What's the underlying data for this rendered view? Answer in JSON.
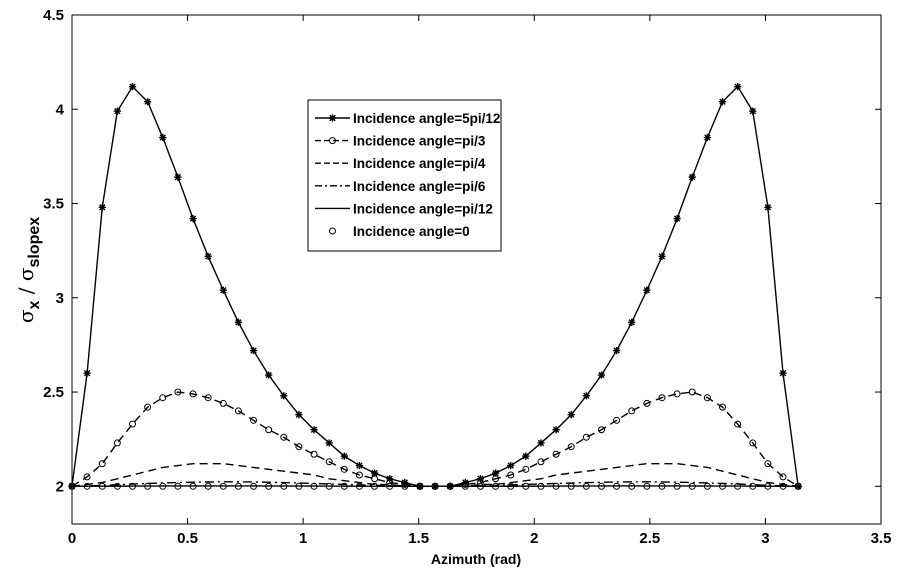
{
  "chart_data": {
    "type": "line",
    "title": "",
    "xlabel": "Azimuth (rad)",
    "ylabel": {
      "num_symbol": "σ",
      "num_sub": "x",
      "separator": " / ",
      "den_symbol": "σ",
      "den_sub": "slopex"
    },
    "xlim": [
      0,
      3.5
    ],
    "ylim": [
      1.8,
      4.5
    ],
    "xticks": [
      "0",
      "0.5",
      "1",
      "1.5",
      "2",
      "2.5",
      "3",
      "3.5"
    ],
    "yticks": [
      "2",
      "2.5",
      "3",
      "3.5",
      "4",
      "4.5"
    ],
    "grid": false,
    "legend_position": "top-center",
    "series": [
      {
        "name": "Incidence angle=5pi/12",
        "style": "solid-star",
        "x": [
          0,
          0.0654,
          0.1309,
          0.1963,
          0.2618,
          0.3272,
          0.3927,
          0.4581,
          0.5236,
          0.589,
          0.6545,
          0.7199,
          0.7854,
          0.8508,
          0.9163,
          0.9817,
          1.0472,
          1.1126,
          1.1781,
          1.2435,
          1.309,
          1.3744,
          1.4399,
          1.5053,
          1.5708,
          1.6362,
          1.7017,
          1.7671,
          1.8326,
          1.898,
          1.9635,
          2.0289,
          2.0944,
          2.1598,
          2.2253,
          2.2907,
          2.3562,
          2.4216,
          2.4871,
          2.5525,
          2.618,
          2.6834,
          2.7489,
          2.8143,
          2.8798,
          2.9452,
          3.0107,
          3.0761,
          3.1416
        ],
        "y": [
          2.0,
          2.6,
          3.48,
          3.99,
          4.12,
          4.04,
          3.85,
          3.64,
          3.42,
          3.22,
          3.04,
          2.87,
          2.72,
          2.59,
          2.48,
          2.38,
          2.3,
          2.23,
          2.16,
          2.11,
          2.07,
          2.04,
          2.02,
          2.0,
          2.0,
          2.0,
          2.02,
          2.04,
          2.07,
          2.11,
          2.16,
          2.23,
          2.3,
          2.38,
          2.48,
          2.59,
          2.72,
          2.87,
          3.04,
          3.22,
          3.42,
          3.64,
          3.85,
          4.04,
          4.12,
          3.99,
          3.48,
          2.6,
          2.0
        ]
      },
      {
        "name": "Incidence angle=pi/3",
        "style": "dashed-circle",
        "x": [
          0,
          0.0654,
          0.1309,
          0.1963,
          0.2618,
          0.3272,
          0.3927,
          0.4581,
          0.5236,
          0.589,
          0.6545,
          0.7199,
          0.7854,
          0.8508,
          0.9163,
          0.9817,
          1.0472,
          1.1126,
          1.1781,
          1.2435,
          1.309,
          1.3744,
          1.4399,
          1.5053,
          1.5708,
          1.6362,
          1.7017,
          1.7671,
          1.8326,
          1.898,
          1.9635,
          2.0289,
          2.0944,
          2.1598,
          2.2253,
          2.2907,
          2.3562,
          2.4216,
          2.4871,
          2.5525,
          2.618,
          2.6834,
          2.7489,
          2.8143,
          2.8798,
          2.9452,
          3.0107,
          3.0761,
          3.1416
        ],
        "y": [
          2.0,
          2.05,
          2.12,
          2.23,
          2.33,
          2.42,
          2.47,
          2.5,
          2.49,
          2.47,
          2.44,
          2.4,
          2.35,
          2.3,
          2.26,
          2.21,
          2.17,
          2.13,
          2.09,
          2.06,
          2.04,
          2.02,
          2.01,
          2.0,
          2.0,
          2.0,
          2.01,
          2.02,
          2.04,
          2.06,
          2.09,
          2.13,
          2.17,
          2.21,
          2.26,
          2.3,
          2.35,
          2.4,
          2.44,
          2.47,
          2.49,
          2.5,
          2.47,
          2.42,
          2.33,
          2.23,
          2.12,
          2.05,
          2.0
        ]
      },
      {
        "name": "Incidence angle=pi/4",
        "style": "dashed",
        "x": [
          0,
          0.0654,
          0.1309,
          0.1963,
          0.2618,
          0.3272,
          0.3927,
          0.4581,
          0.5236,
          0.589,
          0.6545,
          0.7199,
          0.7854,
          0.8508,
          0.9163,
          0.9817,
          1.0472,
          1.1126,
          1.1781,
          1.2435,
          1.309,
          1.3744,
          1.4399,
          1.5053,
          1.5708,
          1.6362,
          1.7017,
          1.7671,
          1.8326,
          1.898,
          1.9635,
          2.0289,
          2.0944,
          2.1598,
          2.2253,
          2.2907,
          2.3562,
          2.4216,
          2.4871,
          2.5525,
          2.618,
          2.6834,
          2.7489,
          2.8143,
          2.8798,
          2.9452,
          3.0107,
          3.0761,
          3.1416
        ],
        "y": [
          2.0,
          2.01,
          2.02,
          2.04,
          2.06,
          2.08,
          2.1,
          2.11,
          2.12,
          2.12,
          2.12,
          2.11,
          2.1,
          2.09,
          2.08,
          2.07,
          2.06,
          2.04,
          2.03,
          2.02,
          2.01,
          2.01,
          2.0,
          2.0,
          2.0,
          2.0,
          2.0,
          2.01,
          2.01,
          2.02,
          2.03,
          2.04,
          2.06,
          2.07,
          2.08,
          2.09,
          2.1,
          2.11,
          2.12,
          2.12,
          2.12,
          2.11,
          2.1,
          2.08,
          2.06,
          2.04,
          2.02,
          2.01,
          2.0
        ]
      },
      {
        "name": "Incidence angle=pi/6",
        "style": "dashdot",
        "x": [
          0,
          0.1309,
          0.2618,
          0.3927,
          0.5236,
          0.6545,
          0.7854,
          0.9163,
          1.0472,
          1.1781,
          1.309,
          1.4399,
          1.5708,
          1.7017,
          1.8326,
          1.9635,
          2.0944,
          2.2253,
          2.3562,
          2.4871,
          2.618,
          2.7489,
          2.8798,
          3.0107,
          3.1416
        ],
        "y": [
          2.0,
          2.005,
          2.012,
          2.018,
          2.022,
          2.024,
          2.023,
          2.02,
          2.015,
          2.01,
          2.005,
          2.002,
          2.0,
          2.002,
          2.005,
          2.01,
          2.015,
          2.02,
          2.023,
          2.024,
          2.022,
          2.018,
          2.012,
          2.005,
          2.0
        ]
      },
      {
        "name": "Incidence angle=pi/12",
        "style": "solid",
        "x": [
          0,
          0.2618,
          0.5236,
          0.7854,
          1.0472,
          1.309,
          1.5708,
          1.8326,
          2.0944,
          2.3562,
          2.618,
          2.8798,
          3.1416
        ],
        "y": [
          2.0,
          2.001,
          2.002,
          2.002,
          2.001,
          2.0,
          2.0,
          2.0,
          2.001,
          2.002,
          2.002,
          2.001,
          2.0
        ]
      },
      {
        "name": "Incidence angle=0",
        "style": "circle",
        "x": [
          0,
          0.0654,
          0.1309,
          0.1963,
          0.2618,
          0.3272,
          0.3927,
          0.4581,
          0.5236,
          0.589,
          0.6545,
          0.7199,
          0.7854,
          0.8508,
          0.9163,
          0.9817,
          1.0472,
          1.1126,
          1.1781,
          1.2435,
          1.309,
          1.3744,
          1.4399,
          1.5053,
          1.5708,
          1.6362,
          1.7017,
          1.7671,
          1.8326,
          1.898,
          1.9635,
          2.0289,
          2.0944,
          2.1598,
          2.2253,
          2.2907,
          2.3562,
          2.4216,
          2.4871,
          2.5525,
          2.618,
          2.6834,
          2.7489,
          2.8143,
          2.8798,
          2.9452,
          3.0107,
          3.0761,
          3.1416
        ],
        "y": [
          2.0,
          2.0,
          2.0,
          2.0,
          2.0,
          2.0,
          2.0,
          2.0,
          2.0,
          2.0,
          2.0,
          2.0,
          2.0,
          2.0,
          2.0,
          2.0,
          2.0,
          2.0,
          2.0,
          2.0,
          2.0,
          2.0,
          2.0,
          2.0,
          2.0,
          2.0,
          2.0,
          2.0,
          2.0,
          2.0,
          2.0,
          2.0,
          2.0,
          2.0,
          2.0,
          2.0,
          2.0,
          2.0,
          2.0,
          2.0,
          2.0,
          2.0,
          2.0,
          2.0,
          2.0,
          2.0,
          2.0,
          2.0,
          2.0
        ]
      }
    ]
  }
}
